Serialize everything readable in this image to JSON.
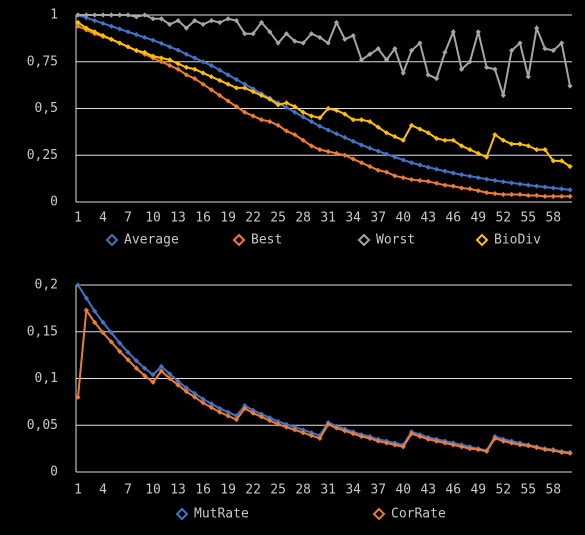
{
  "chart_data": [
    {
      "type": "line",
      "grid": true,
      "legend": "bottom",
      "x": [
        1,
        2,
        3,
        4,
        5,
        6,
        7,
        8,
        9,
        10,
        11,
        12,
        13,
        14,
        15,
        16,
        17,
        18,
        19,
        20,
        21,
        22,
        23,
        24,
        25,
        26,
        27,
        28,
        29,
        30,
        31,
        32,
        33,
        34,
        35,
        36,
        37,
        38,
        39,
        40,
        41,
        42,
        43,
        44,
        45,
        46,
        47,
        48,
        49,
        50,
        51,
        52,
        53,
        54,
        55,
        56,
        57,
        58,
        59,
        60
      ],
      "xlim": [
        1,
        60
      ],
      "xticks": [
        1,
        4,
        7,
        10,
        13,
        16,
        19,
        22,
        25,
        28,
        31,
        34,
        37,
        40,
        43,
        46,
        49,
        52,
        55,
        58
      ],
      "ylim": [
        0,
        1
      ],
      "yticks": [
        0,
        {
          "value": 0.25,
          "label": "0,25"
        },
        {
          "value": 0.5,
          "label": "0,5"
        },
        {
          "value": 0.75,
          "label": "0,75"
        },
        1
      ],
      "series": [
        {
          "name": "Average",
          "color": "#4472c4",
          "values": [
            1,
            0.985,
            0.97,
            0.955,
            0.94,
            0.925,
            0.91,
            0.895,
            0.88,
            0.865,
            0.848,
            0.83,
            0.812,
            0.79,
            0.77,
            0.75,
            0.73,
            0.705,
            0.68,
            0.655,
            0.63,
            0.605,
            0.58,
            0.555,
            0.53,
            0.505,
            0.48,
            0.455,
            0.43,
            0.405,
            0.385,
            0.365,
            0.345,
            0.325,
            0.305,
            0.288,
            0.272,
            0.256,
            0.24,
            0.225,
            0.21,
            0.198,
            0.186,
            0.175,
            0.165,
            0.155,
            0.146,
            0.138,
            0.13,
            0.122,
            0.115,
            0.108,
            0.102,
            0.096,
            0.09,
            0.085,
            0.08,
            0.075,
            0.07,
            0.065
          ]
        },
        {
          "name": "Best",
          "color": "#ed7d31",
          "values": [
            0.94,
            0.92,
            0.9,
            0.885,
            0.87,
            0.85,
            0.83,
            0.81,
            0.79,
            0.77,
            0.75,
            0.73,
            0.71,
            0.68,
            0.66,
            0.63,
            0.6,
            0.57,
            0.54,
            0.51,
            0.48,
            0.46,
            0.44,
            0.43,
            0.41,
            0.38,
            0.36,
            0.33,
            0.3,
            0.28,
            0.27,
            0.26,
            0.25,
            0.23,
            0.21,
            0.19,
            0.17,
            0.16,
            0.14,
            0.13,
            0.12,
            0.115,
            0.11,
            0.1,
            0.09,
            0.085,
            0.075,
            0.07,
            0.06,
            0.05,
            0.045,
            0.04,
            0.04,
            0.04,
            0.035,
            0.035,
            0.03,
            0.03,
            0.03,
            0.03
          ]
        },
        {
          "name": "Worst",
          "color": "#a5a5a5",
          "values": [
            1,
            1,
            1,
            1,
            1,
            1,
            1,
            0.99,
            1,
            0.98,
            0.98,
            0.95,
            0.97,
            0.93,
            0.97,
            0.95,
            0.97,
            0.96,
            0.98,
            0.97,
            0.9,
            0.9,
            0.96,
            0.91,
            0.85,
            0.9,
            0.86,
            0.85,
            0.9,
            0.88,
            0.85,
            0.96,
            0.87,
            0.89,
            0.76,
            0.79,
            0.82,
            0.76,
            0.82,
            0.69,
            0.81,
            0.85,
            0.68,
            0.66,
            0.8,
            0.91,
            0.71,
            0.75,
            0.91,
            0.72,
            0.71,
            0.57,
            0.81,
            0.85,
            0.67,
            0.93,
            0.82,
            0.81,
            0.85,
            0.62
          ]
        },
        {
          "name": "BioDiv",
          "color": "#ffc000",
          "values": [
            0.96,
            0.93,
            0.91,
            0.89,
            0.87,
            0.85,
            0.83,
            0.81,
            0.8,
            0.78,
            0.77,
            0.76,
            0.74,
            0.72,
            0.71,
            0.69,
            0.67,
            0.65,
            0.63,
            0.61,
            0.61,
            0.59,
            0.57,
            0.55,
            0.52,
            0.53,
            0.51,
            0.48,
            0.46,
            0.45,
            0.5,
            0.49,
            0.47,
            0.44,
            0.44,
            0.43,
            0.4,
            0.37,
            0.35,
            0.33,
            0.41,
            0.39,
            0.37,
            0.34,
            0.33,
            0.33,
            0.3,
            0.28,
            0.26,
            0.24,
            0.36,
            0.33,
            0.31,
            0.31,
            0.3,
            0.28,
            0.28,
            0.22,
            0.22,
            0.19
          ]
        }
      ]
    },
    {
      "type": "line",
      "grid": true,
      "legend": "bottom",
      "x": [
        1,
        2,
        3,
        4,
        5,
        6,
        7,
        8,
        9,
        10,
        11,
        12,
        13,
        14,
        15,
        16,
        17,
        18,
        19,
        20,
        21,
        22,
        23,
        24,
        25,
        26,
        27,
        28,
        29,
        30,
        31,
        32,
        33,
        34,
        35,
        36,
        37,
        38,
        39,
        40,
        41,
        42,
        43,
        44,
        45,
        46,
        47,
        48,
        49,
        50,
        51,
        52,
        53,
        54,
        55,
        56,
        57,
        58,
        59,
        60
      ],
      "xlim": [
        1,
        60
      ],
      "xticks": [
        1,
        4,
        7,
        10,
        13,
        16,
        19,
        22,
        25,
        28,
        31,
        34,
        37,
        40,
        43,
        46,
        49,
        52,
        55,
        58
      ],
      "ylim": [
        0,
        0.2
      ],
      "yticks": [
        0,
        {
          "value": 0.05,
          "label": "0,05"
        },
        {
          "value": 0.1,
          "label": "0,1"
        },
        {
          "value": 0.15,
          "label": "0,15"
        },
        {
          "value": 0.2,
          "label": "0,2"
        }
      ],
      "series": [
        {
          "name": "MutRate",
          "color": "#4472c4",
          "values": [
            0.2,
            0.186,
            0.172,
            0.16,
            0.149,
            0.138,
            0.128,
            0.119,
            0.111,
            0.104,
            0.113,
            0.105,
            0.097,
            0.09,
            0.084,
            0.078,
            0.073,
            0.068,
            0.064,
            0.06,
            0.071,
            0.066,
            0.062,
            0.058,
            0.054,
            0.051,
            0.048,
            0.045,
            0.042,
            0.039,
            0.053,
            0.049,
            0.046,
            0.043,
            0.04,
            0.038,
            0.035,
            0.033,
            0.031,
            0.029,
            0.043,
            0.04,
            0.037,
            0.035,
            0.033,
            0.031,
            0.029,
            0.027,
            0.025,
            0.023,
            0.038,
            0.035,
            0.033,
            0.031,
            0.029,
            0.027,
            0.025,
            0.024,
            0.022,
            0.021
          ]
        },
        {
          "name": "CorRate",
          "color": "#ed7d31",
          "values": [
            0.08,
            0.173,
            0.16,
            0.149,
            0.139,
            0.129,
            0.12,
            0.111,
            0.103,
            0.096,
            0.108,
            0.1,
            0.093,
            0.086,
            0.08,
            0.074,
            0.069,
            0.064,
            0.06,
            0.056,
            0.068,
            0.063,
            0.059,
            0.055,
            0.051,
            0.048,
            0.045,
            0.042,
            0.039,
            0.036,
            0.051,
            0.047,
            0.044,
            0.041,
            0.038,
            0.036,
            0.033,
            0.031,
            0.029,
            0.027,
            0.041,
            0.038,
            0.035,
            0.033,
            0.031,
            0.029,
            0.027,
            0.025,
            0.024,
            0.022,
            0.036,
            0.033,
            0.031,
            0.029,
            0.028,
            0.026,
            0.024,
            0.023,
            0.021,
            0.02
          ]
        }
      ]
    }
  ]
}
